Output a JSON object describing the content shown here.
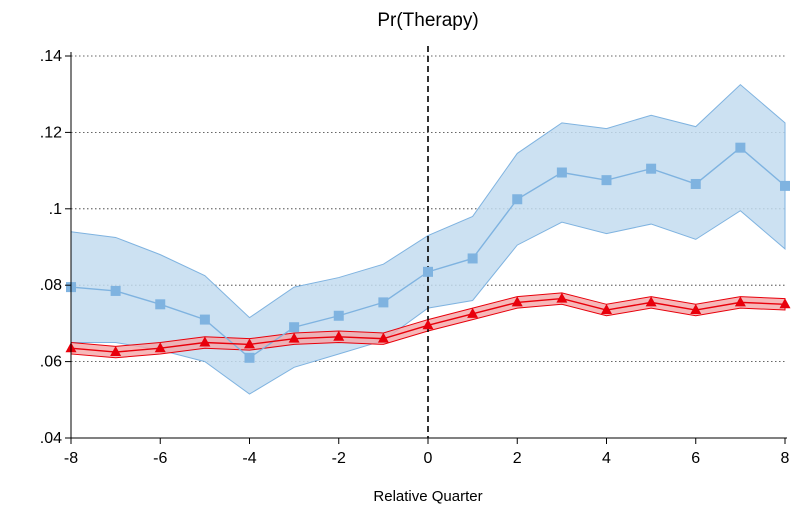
{
  "chart_data": {
    "type": "line",
    "title": "Pr(Therapy)",
    "xlabel": "Relative Quarter",
    "ylabel": "",
    "xlim": [
      -8,
      8
    ],
    "ylim": [
      0.04,
      0.14
    ],
    "xticks": [
      -8,
      -6,
      -4,
      -2,
      0,
      2,
      4,
      6,
      8
    ],
    "xtick_labels": [
      "-8",
      "-6",
      "-4",
      "-2",
      "0",
      "2",
      "4",
      "6",
      "8"
    ],
    "yticks": [
      0.04,
      0.06,
      0.08,
      0.1,
      0.12,
      0.14
    ],
    "ytick_labels": [
      ".04",
      ".06",
      ".08",
      ".1",
      ".12",
      ".14"
    ],
    "grid": "horizontal dotted",
    "reference_line": {
      "x": 0,
      "style": "dashed"
    },
    "x": [
      -8,
      -7,
      -6,
      -5,
      -4,
      -3,
      -2,
      -1,
      0,
      1,
      2,
      3,
      4,
      5,
      6,
      7,
      8
    ],
    "series": [
      {
        "marker": "square",
        "color": "#7fb3e0",
        "band_color": "#c3dcf0",
        "values": [
          0.0795,
          0.0785,
          0.075,
          0.071,
          0.061,
          0.069,
          0.072,
          0.0755,
          0.0835,
          0.087,
          0.1025,
          0.1095,
          0.1075,
          0.1105,
          0.1065,
          0.116,
          0.106
        ],
        "ci_lower": [
          0.065,
          0.065,
          0.063,
          0.06,
          0.0515,
          0.0585,
          0.062,
          0.0655,
          0.074,
          0.076,
          0.0905,
          0.0965,
          0.0935,
          0.096,
          0.092,
          0.0995,
          0.0895
        ],
        "ci_upper": [
          0.094,
          0.0925,
          0.088,
          0.0825,
          0.0715,
          0.0795,
          0.082,
          0.0855,
          0.093,
          0.098,
          0.1145,
          0.1225,
          0.121,
          0.1245,
          0.1215,
          0.1325,
          0.1225
        ]
      },
      {
        "marker": "triangle",
        "color": "#e8000b",
        "band_color": "#f4a6a8",
        "values": [
          0.0635,
          0.0625,
          0.0635,
          0.065,
          0.0645,
          0.066,
          0.0665,
          0.066,
          0.0695,
          0.0725,
          0.0755,
          0.0765,
          0.0735,
          0.0755,
          0.0735,
          0.0755,
          0.075
        ],
        "ci_lower": [
          0.062,
          0.061,
          0.062,
          0.0635,
          0.063,
          0.0645,
          0.065,
          0.0645,
          0.068,
          0.071,
          0.074,
          0.075,
          0.072,
          0.074,
          0.072,
          0.074,
          0.0735
        ],
        "ci_upper": [
          0.065,
          0.064,
          0.065,
          0.0665,
          0.066,
          0.0675,
          0.068,
          0.0675,
          0.071,
          0.074,
          0.077,
          0.078,
          0.075,
          0.077,
          0.075,
          0.077,
          0.0765
        ]
      }
    ]
  }
}
